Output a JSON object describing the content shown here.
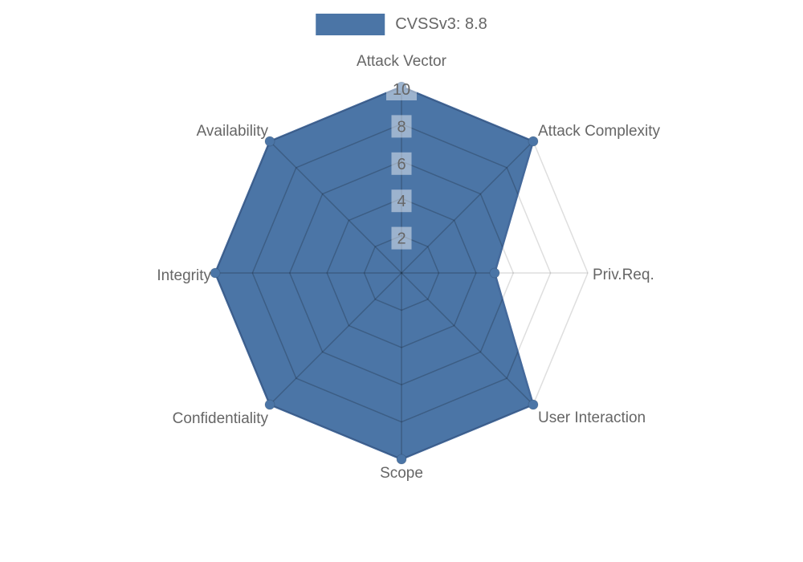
{
  "legend": {
    "label": "CVSSv3: 8.8"
  },
  "chart_data": {
    "type": "radar",
    "title": "CVSSv3: 8.8",
    "categories": [
      "Attack Vector",
      "Attack Complexity",
      "Priv.Req.",
      "User Interaction",
      "Scope",
      "Confidentiality",
      "Integrity",
      "Availability"
    ],
    "series": [
      {
        "name": "CVSSv3: 8.8",
        "values": [
          10,
          10,
          5,
          10,
          10,
          10,
          10,
          10
        ]
      }
    ],
    "ticks": [
      "2",
      "4",
      "6",
      "8",
      "10"
    ],
    "tick_values": [
      2,
      4,
      6,
      8,
      10
    ],
    "r_max": 10,
    "grid": true,
    "legend_position": "top",
    "colors": {
      "fill": "#4b75a6",
      "border": "#44699b",
      "grid_inside": "rgba(0,0,0,0.2)",
      "grid_outside": "rgba(0,0,0,0.13)",
      "text": "#666666",
      "tick_text": "#666666",
      "tick_backdrop": "rgba(255,255,255,0.45)"
    }
  }
}
